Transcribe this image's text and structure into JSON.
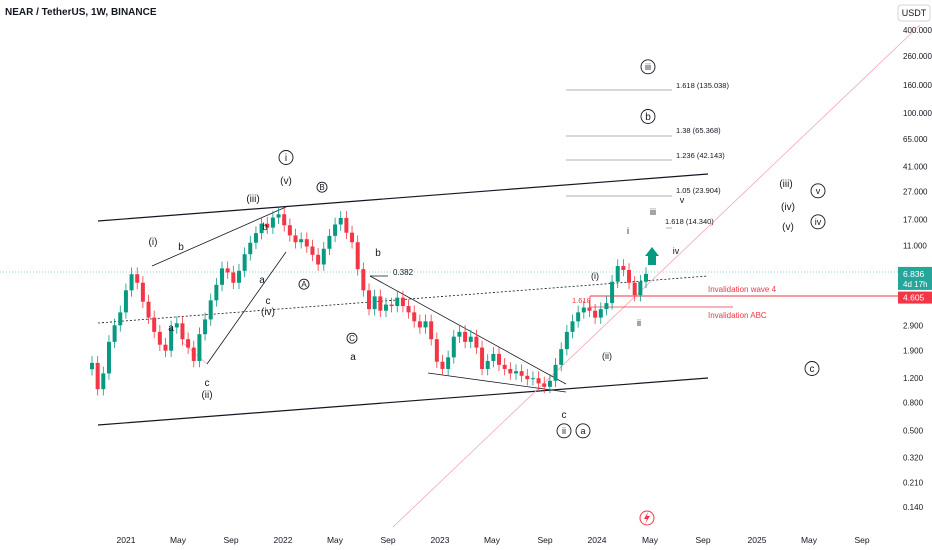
{
  "header": {
    "title": "NEAR / TetherUS, 1W, BINANCE"
  },
  "currency_badge": "USDT",
  "colors": {
    "up": "#089981",
    "down": "#f23645",
    "line": "#131722",
    "red_line": "#f23645",
    "pink_line": "#f7a5b0",
    "grid_text": "#131722",
    "price_tag_bg": "#26a69a",
    "invalid_tag_bg": "#f23645",
    "arrow": "#089981"
  },
  "chart_data": {
    "type": "candlestick",
    "scale": "log",
    "y_ticks": [
      "400.000",
      "260.000",
      "160.000",
      "100.000",
      "65.000",
      "41.000",
      "27.000",
      "17.000",
      "11.000",
      "6.836",
      "2.900",
      "1.900",
      "1.200",
      "0.800",
      "0.500",
      "0.320",
      "0.210",
      "0.140"
    ],
    "y_tick_values": [
      400,
      260,
      160,
      100,
      65,
      41,
      27,
      17,
      11,
      6.836,
      2.9,
      1.9,
      1.2,
      0.8,
      0.5,
      0.32,
      0.21,
      0.14
    ],
    "x_ticks": [
      "2021",
      "May",
      "Sep",
      "2022",
      "May",
      "Sep",
      "2023",
      "May",
      "Sep",
      "2024",
      "May",
      "Sep",
      "2025",
      "May",
      "Sep"
    ],
    "last_price": {
      "label": "6.836",
      "value": 6.836,
      "countdown": "4d 17h"
    },
    "invalidation_price": {
      "label": "4.605",
      "value": 4.605
    },
    "series_close": [
      1.55,
      1.0,
      1.3,
      2.2,
      2.9,
      3.6,
      5.2,
      6.8,
      5.9,
      4.3,
      3.3,
      2.6,
      2.1,
      1.9,
      2.8,
      3.0,
      2.3,
      2.0,
      1.6,
      2.5,
      3.2,
      4.4,
      5.7,
      7.5,
      7.0,
      5.9,
      7.2,
      9.5,
      11.5,
      13.5,
      15.8,
      14.8,
      17.5,
      18.5,
      15.4,
      13.0,
      11.6,
      12.2,
      10.8,
      9.4,
      8.0,
      10.4,
      12.9,
      15.6,
      17.4,
      13.6,
      11.6,
      7.4,
      5.2,
      3.8,
      4.7,
      3.7,
      4.1,
      4.0,
      4.6,
      4.0,
      3.6,
      3.1,
      2.8,
      3.1,
      2.3,
      1.58,
      1.4,
      1.7,
      2.4,
      2.6,
      2.2,
      2.4,
      2.0,
      1.4,
      1.6,
      1.8,
      1.5,
      1.4,
      1.3,
      1.35,
      1.25,
      1.18,
      1.2,
      1.1,
      1.04,
      1.15,
      1.5,
      1.95,
      2.6,
      3.1,
      3.6,
      3.9,
      3.7,
      3.3,
      3.8,
      4.2,
      6.0,
      7.8,
      7.3,
      5.9,
      4.8,
      6.0,
      6.836
    ],
    "annotations": {
      "i_circle": "i",
      "v_paren": "(v)",
      "B_circle": "B",
      "iii_paren": "(iii)",
      "i_paren": "(i)",
      "b1": "b",
      "b2": "b",
      "c1": "c",
      "iv_paren": "(iv)",
      "a1": "a",
      "a2": "a",
      "A_circle": "A",
      "c2": "c",
      "ii_paren": "(ii)",
      "b3": "b",
      "fib_0382": "0.382",
      "C_circle": "C",
      "a3": "a",
      "c3": "c",
      "ii_circle": "ii",
      "a_circle": "a",
      "iii_circle_top": "iii",
      "fib_1618_135": "1.618 (135.038)",
      "b_circle_top": "b",
      "fib_138": "1.38 (65.368)",
      "fib_1236": "1.236 (42.143)",
      "fib_105": "1.05 (23.904)",
      "v_small": "v",
      "iii_small": "iii",
      "fib_1618_14": "1.618 (14.340)",
      "i_small": "i",
      "iv_small": "iv",
      "i_paren2": "(i)",
      "fib_1618_left": "1.618",
      "ii_small": "ii",
      "ii_paren2": "(ii)",
      "iii_paren_right": "(iii)",
      "v_circle_right": "v",
      "iv_paren_right": "(iv)",
      "iv_circle_right": "iv",
      "v_paren_right": "(v)",
      "c_circle_right": "c",
      "invalidation_wave4": "Invalidation wave 4",
      "invalidation_abc": "Invalidation ABC"
    }
  }
}
